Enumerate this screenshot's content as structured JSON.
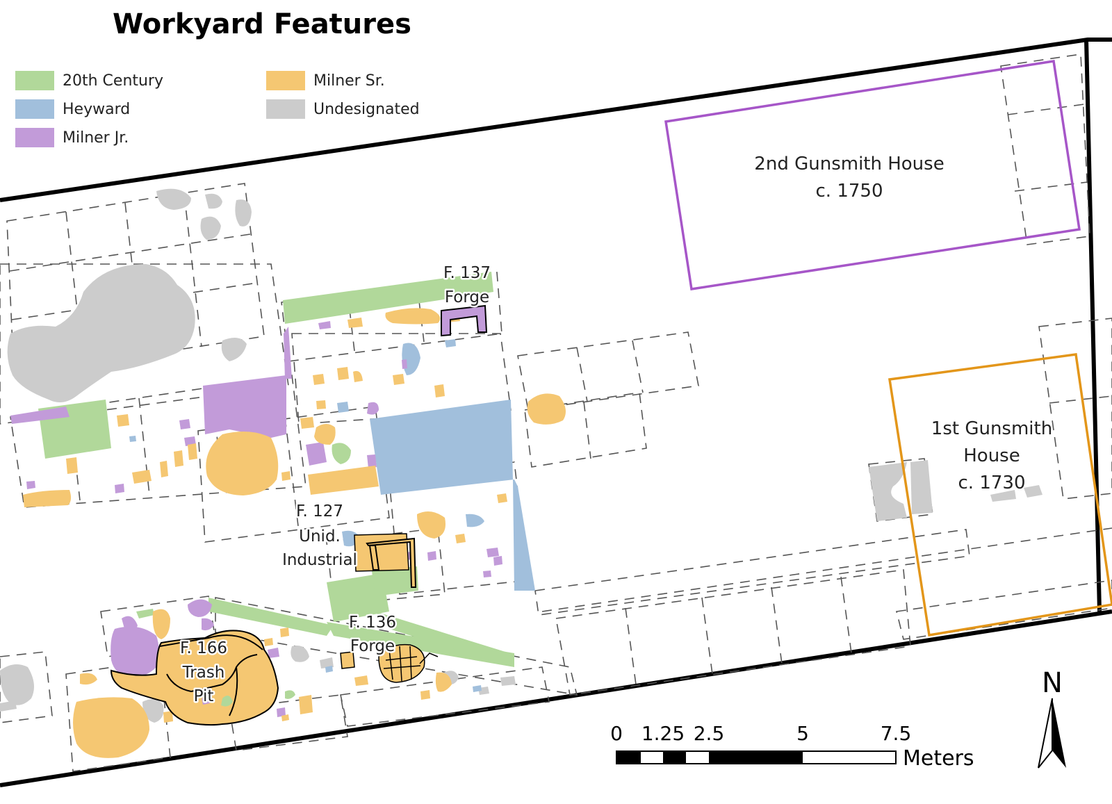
{
  "map": {
    "title": "Workyard Features"
  },
  "legend": {
    "items": [
      {
        "label": "20th Century",
        "color": "#b1d89a"
      },
      {
        "label": "Heyward",
        "color": "#a1bfdc"
      },
      {
        "label": "Milner Jr.",
        "color": "#c29bd9"
      },
      {
        "label": "Milner Sr.",
        "color": "#f5c772"
      },
      {
        "label": "Undesignated",
        "color": "#cccccc"
      }
    ]
  },
  "features": {
    "f137": "F. 137",
    "f137_type": "Forge",
    "f127": "F. 127",
    "f127_type_1": "Unid.",
    "f127_type_2": "Industrial",
    "f136": "F. 136",
    "f136_type": "Forge",
    "f166": "F. 166",
    "f166_type_1": "Trash",
    "f166_type_2": "Pit"
  },
  "houses": {
    "second_name": "2nd Gunsmith House",
    "second_date": "c. 1750",
    "second_color": "#a656c8",
    "first_name_1": "1st Gunsmith",
    "first_name_2": "House",
    "first_date": "c. 1730",
    "first_color": "#e3961a"
  },
  "scale_bar": {
    "ticks": [
      "0",
      "1.25",
      "2.5",
      "5",
      "7.5"
    ],
    "unit": "Meters"
  },
  "north_arrow": {
    "label": "N"
  }
}
